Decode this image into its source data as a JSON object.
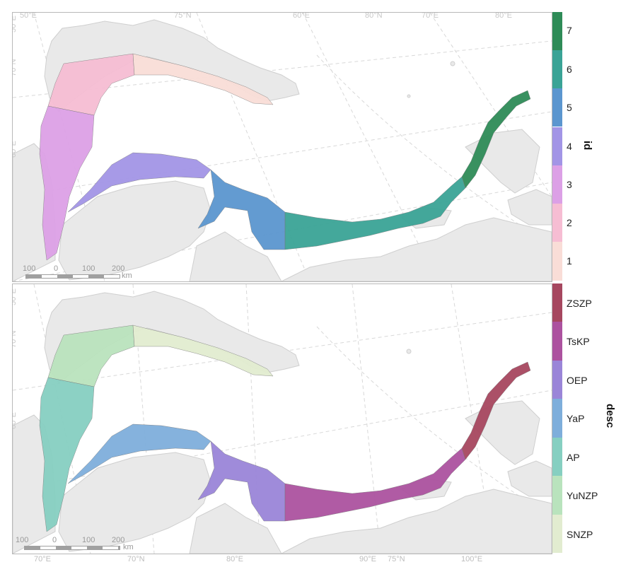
{
  "colors": {
    "land": "#e9e9e9",
    "land_stroke": "#cfcfcf",
    "grid": "#d8d8d8",
    "frame": "#b8b8b8"
  },
  "top_panel": {
    "coord_labels": [
      "50°E",
      "75°N",
      "60°E",
      "80°N",
      "70°E",
      "80°E",
      "50°E",
      "70°N",
      "60°E"
    ],
    "scalebar": {
      "ticks": [
        "100",
        "0",
        "100",
        "200"
      ],
      "unit": "km"
    },
    "legend": {
      "title": "id",
      "items": [
        {
          "label": "7",
          "color": "#2e8b57"
        },
        {
          "label": "6",
          "color": "#3aa396"
        },
        {
          "label": "5",
          "color": "#5b96cf"
        },
        {
          "label": "4",
          "color": "#a295e6"
        },
        {
          "label": "3",
          "color": "#dca0e6"
        },
        {
          "label": "2",
          "color": "#f6bdd3"
        },
        {
          "label": "1",
          "color": "#f9ddd7"
        }
      ]
    }
  },
  "bottom_panel": {
    "coord_labels": [
      "50°E",
      "70°N",
      "60°E",
      "70°E",
      "70°N",
      "80°E",
      "90°E",
      "75°N",
      "100°E"
    ],
    "scalebar": {
      "ticks": [
        "100",
        "0",
        "100",
        "200"
      ],
      "unit": "km"
    },
    "legend": {
      "title": "desc",
      "items": [
        {
          "label": "ZSZP",
          "color": "#a6475f"
        },
        {
          "label": "TsKP",
          "color": "#ac529f"
        },
        {
          "label": "OEP",
          "color": "#9a85d8"
        },
        {
          "label": "YaP",
          "color": "#7eaedb"
        },
        {
          "label": "AP",
          "color": "#86cfc1"
        },
        {
          "label": "YuNZP",
          "color": "#b9e3bd"
        },
        {
          "label": "SNZP",
          "color": "#e2ecd0"
        }
      ]
    }
  }
}
